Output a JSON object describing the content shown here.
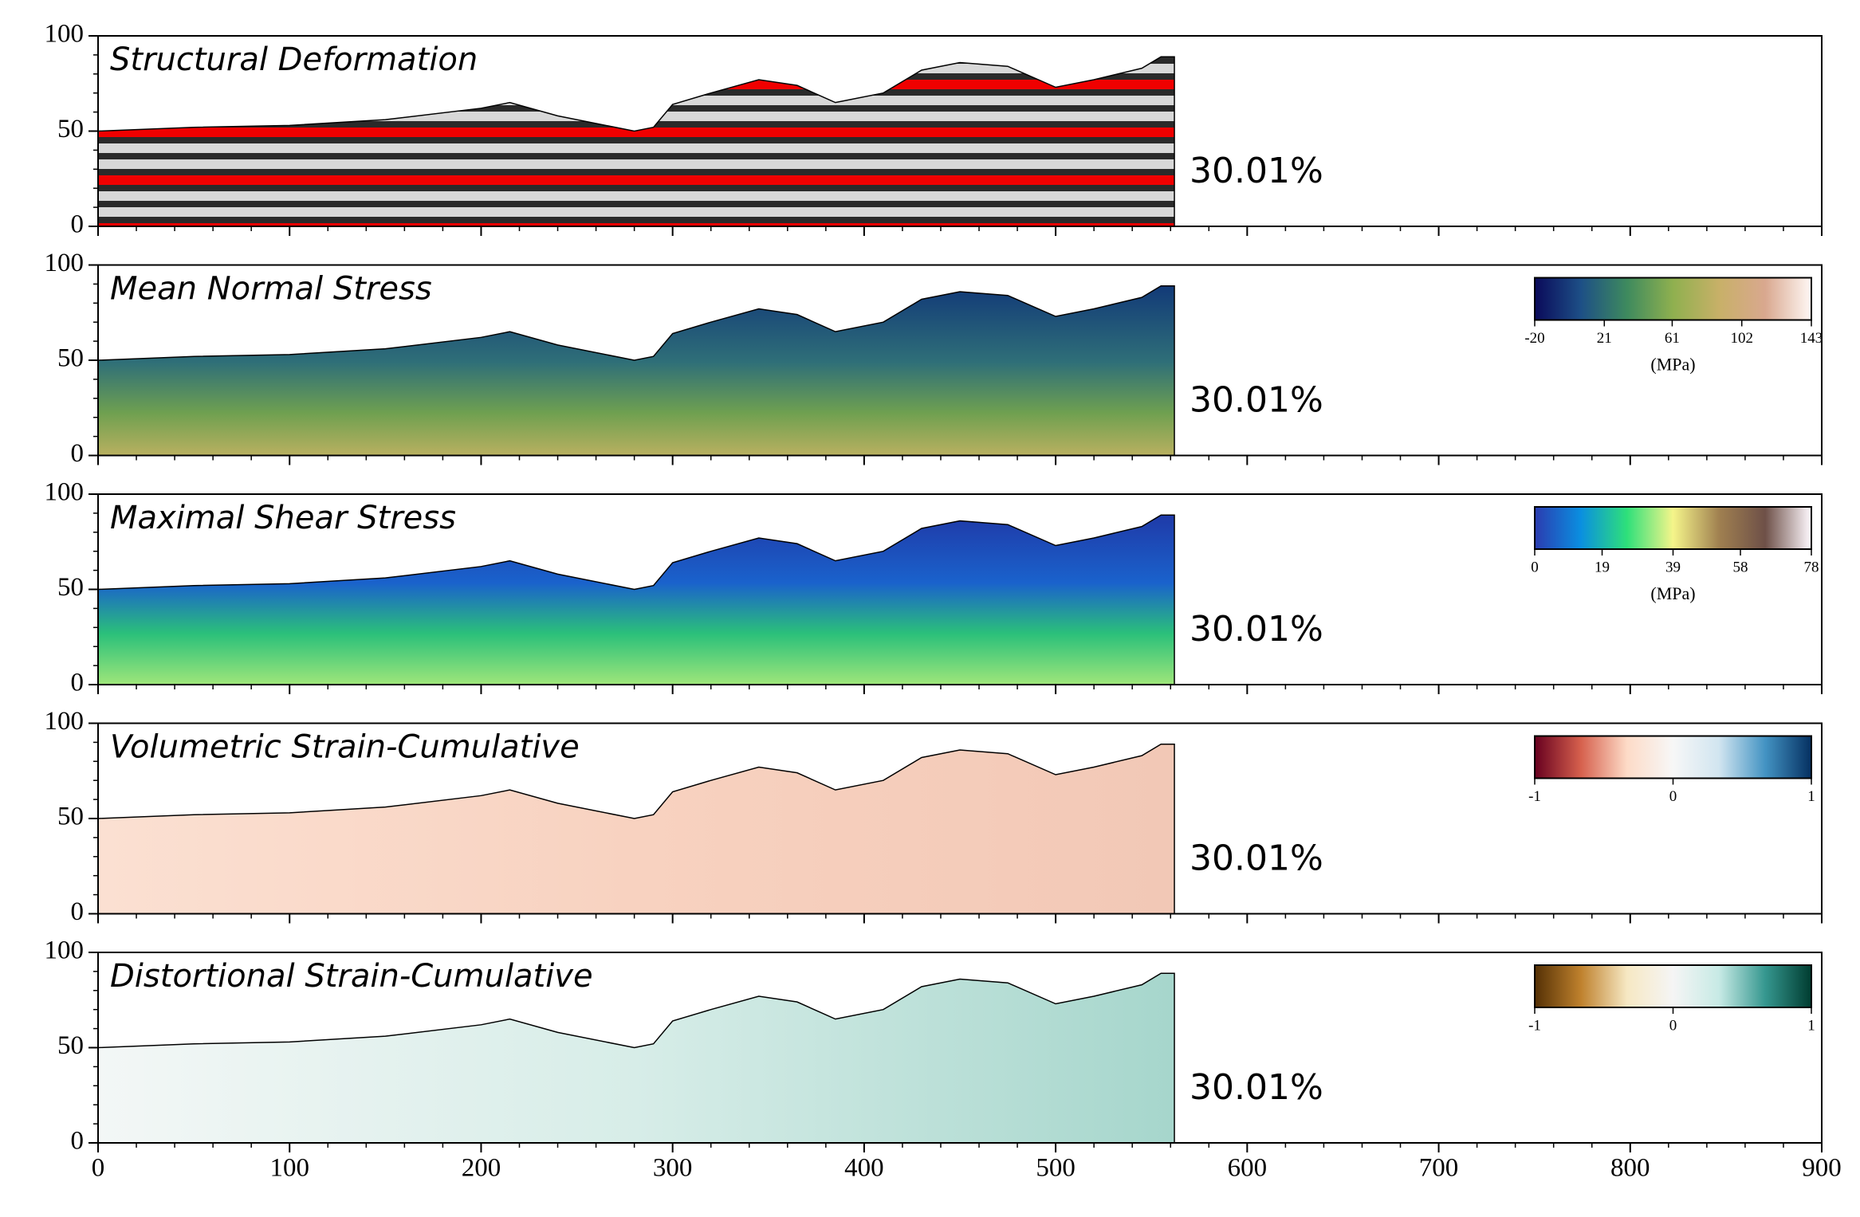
{
  "chart_data": [
    {
      "type": "area",
      "title": "Structural Deformation",
      "annotation": "30.01%",
      "x": [
        0,
        50,
        100,
        150,
        200,
        215,
        240,
        280,
        290,
        300,
        320,
        345,
        365,
        385,
        410,
        430,
        450,
        475,
        500,
        520,
        545,
        555,
        562
      ],
      "values": [
        50,
        52,
        53,
        56,
        62,
        65,
        58,
        50,
        52,
        64,
        70,
        77,
        74,
        65,
        70,
        82,
        86,
        84,
        73,
        77,
        83,
        89,
        89
      ],
      "xlim": [
        0,
        900
      ],
      "xticks": [
        0,
        100,
        200,
        300,
        400,
        500,
        600,
        700,
        800,
        900
      ],
      "xtick_labels": false,
      "ylim": [
        0,
        100
      ],
      "yticks": [
        0,
        50,
        100
      ]
    },
    {
      "type": "area",
      "title": "Mean Normal Stress",
      "annotation": "30.01%",
      "x": [
        0,
        50,
        100,
        150,
        200,
        215,
        240,
        280,
        290,
        300,
        320,
        345,
        365,
        385,
        410,
        430,
        450,
        475,
        500,
        520,
        545,
        555,
        562
      ],
      "values": [
        50,
        52,
        53,
        56,
        62,
        65,
        58,
        50,
        52,
        64,
        70,
        77,
        74,
        65,
        70,
        82,
        86,
        84,
        73,
        77,
        83,
        89,
        89
      ],
      "xlim": [
        0,
        900
      ],
      "xticks": [
        0,
        100,
        200,
        300,
        400,
        500,
        600,
        700,
        800,
        900
      ],
      "xtick_labels": false,
      "ylim": [
        0,
        100
      ],
      "yticks": [
        0,
        50,
        100
      ],
      "colorbar": {
        "ticks": [
          -20,
          21,
          61,
          102,
          143
        ],
        "label": "(MPa)",
        "colors": [
          "#0a0a5a",
          "#1d4f86",
          "#3e8a5e",
          "#8fb04f",
          "#c8b068",
          "#d9a88f",
          "#fff8f5"
        ]
      }
    },
    {
      "type": "area",
      "title": "Maximal Shear Stress",
      "annotation": "30.01%",
      "x": [
        0,
        50,
        100,
        150,
        200,
        215,
        240,
        280,
        290,
        300,
        320,
        345,
        365,
        385,
        410,
        430,
        450,
        475,
        500,
        520,
        545,
        555,
        562
      ],
      "values": [
        50,
        52,
        53,
        56,
        62,
        65,
        58,
        50,
        52,
        64,
        70,
        77,
        74,
        65,
        70,
        82,
        86,
        84,
        73,
        77,
        83,
        89,
        89
      ],
      "xlim": [
        0,
        900
      ],
      "xticks": [
        0,
        100,
        200,
        300,
        400,
        500,
        600,
        700,
        800,
        900
      ],
      "xtick_labels": false,
      "ylim": [
        0,
        100
      ],
      "yticks": [
        0,
        50,
        100
      ],
      "colorbar": {
        "ticks": [
          0,
          19,
          39,
          58,
          78
        ],
        "label": "(MPa)",
        "colors": [
          "#2b3cb0",
          "#0a8fe0",
          "#2ee07a",
          "#f5f58a",
          "#a08050",
          "#6e5048",
          "#fffaff"
        ]
      }
    },
    {
      "type": "area",
      "title": "Volumetric Strain-Cumulative",
      "annotation": "30.01%",
      "x": [
        0,
        50,
        100,
        150,
        200,
        215,
        240,
        280,
        290,
        300,
        320,
        345,
        365,
        385,
        410,
        430,
        450,
        475,
        500,
        520,
        545,
        555,
        562
      ],
      "values": [
        50,
        52,
        53,
        56,
        62,
        65,
        58,
        50,
        52,
        64,
        70,
        77,
        74,
        65,
        70,
        82,
        86,
        84,
        73,
        77,
        83,
        89,
        89
      ],
      "xlim": [
        0,
        900
      ],
      "xticks": [
        0,
        100,
        200,
        300,
        400,
        500,
        600,
        700,
        800,
        900
      ],
      "xtick_labels": false,
      "ylim": [
        0,
        100
      ],
      "yticks": [
        0,
        50,
        100
      ],
      "colorbar": {
        "ticks": [
          -1,
          0,
          1
        ],
        "colors": [
          "#67001f",
          "#d6604d",
          "#fddbc7",
          "#f7f7f7",
          "#d1e5f0",
          "#4393c3",
          "#053061"
        ]
      }
    },
    {
      "type": "area",
      "title": "Distortional Strain-Cumulative",
      "annotation": "30.01%",
      "x": [
        0,
        50,
        100,
        150,
        200,
        215,
        240,
        280,
        290,
        300,
        320,
        345,
        365,
        385,
        410,
        430,
        450,
        475,
        500,
        520,
        545,
        555,
        562
      ],
      "values": [
        50,
        52,
        53,
        56,
        62,
        65,
        58,
        50,
        52,
        64,
        70,
        77,
        74,
        65,
        70,
        82,
        86,
        84,
        73,
        77,
        83,
        89,
        89
      ],
      "xlim": [
        0,
        900
      ],
      "xticks": [
        0,
        100,
        200,
        300,
        400,
        500,
        600,
        700,
        800,
        900
      ],
      "xtick_labels": true,
      "ylim": [
        0,
        100
      ],
      "yticks": [
        0,
        50,
        100
      ],
      "colorbar": {
        "ticks": [
          -1,
          0,
          1
        ],
        "colors": [
          "#543005",
          "#bf812d",
          "#f6e8c3",
          "#f5f5f5",
          "#c7eae5",
          "#35978f",
          "#003c30"
        ]
      }
    }
  ]
}
